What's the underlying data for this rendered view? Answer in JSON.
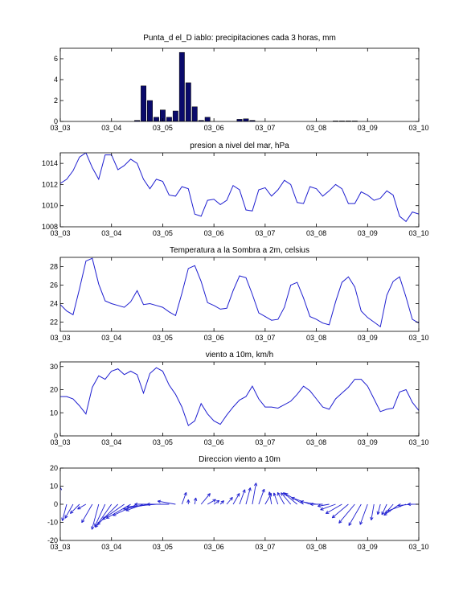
{
  "chart_data": [
    {
      "type": "bar",
      "title": "Punta_d el_D iablo: precipitaciones cada 3 horas, mm",
      "x_ticks": [
        "03_03",
        "03_04",
        "03_05",
        "03_06",
        "03_07",
        "03_08",
        "03_09",
        "03_10"
      ],
      "ylim": [
        0,
        7
      ],
      "y_ticks": [
        0,
        2,
        4,
        6
      ],
      "bar_color": "#0a0a6b",
      "x": [
        4.5,
        4.625,
        4.75,
        4.875,
        5.0,
        5.125,
        5.25,
        5.375,
        5.5,
        5.625,
        5.75,
        5.875,
        6.5,
        6.625,
        6.75,
        8.375,
        8.5,
        8.625,
        8.75
      ],
      "values": [
        0.1,
        3.4,
        2.0,
        0.4,
        1.1,
        0.4,
        1.0,
        6.6,
        3.7,
        1.4,
        0.1,
        0.4,
        0.2,
        0.25,
        0.1,
        0.05,
        0.05,
        0.05,
        0.05
      ]
    },
    {
      "type": "line",
      "title": "presion a nivel del mar, hPa",
      "x_ticks": [
        "03_03",
        "03_04",
        "03_05",
        "03_06",
        "03_07",
        "03_08",
        "03_09",
        "03_10"
      ],
      "ylim": [
        1008,
        1015
      ],
      "y_ticks": [
        1008,
        1010,
        1012,
        1014
      ],
      "line_color": "#1f1fd0",
      "x_start": 3,
      "x_step": 0.125,
      "values": [
        1012.1,
        1012.5,
        1013.3,
        1014.6,
        1015.0,
        1013.6,
        1012.5,
        1014.8,
        1014.8,
        1013.4,
        1013.8,
        1014.4,
        1014.0,
        1012.5,
        1011.6,
        1012.5,
        1012.3,
        1011.0,
        1010.9,
        1011.8,
        1011.6,
        1009.2,
        1009.0,
        1010.5,
        1010.6,
        1010.1,
        1010.5,
        1011.9,
        1011.5,
        1009.6,
        1009.5,
        1011.5,
        1011.7,
        1010.9,
        1011.5,
        1012.4,
        1012.0,
        1010.3,
        1010.2,
        1011.8,
        1011.6,
        1010.9,
        1011.4,
        1012.0,
        1011.6,
        1010.2,
        1010.2,
        1011.3,
        1011.0,
        1010.5,
        1010.7,
        1011.4,
        1011.0,
        1009.0,
        1008.5,
        1009.4,
        1009.2
      ]
    },
    {
      "type": "line",
      "title": "Temperatura a la Sombra a 2m, celsius",
      "x_ticks": [
        "03_03",
        "03_04",
        "03_05",
        "03_06",
        "03_07",
        "03_08",
        "03_09",
        "03_10"
      ],
      "ylim": [
        21,
        29
      ],
      "y_ticks": [
        22,
        24,
        26,
        28
      ],
      "line_color": "#1f1fd0",
      "x_start": 3,
      "x_step": 0.125,
      "values": [
        23.9,
        23.2,
        22.8,
        25.6,
        28.6,
        28.9,
        26.1,
        24.3,
        24.0,
        23.8,
        23.6,
        24.2,
        25.4,
        23.9,
        24.0,
        23.8,
        23.6,
        23.1,
        22.7,
        25.1,
        27.8,
        28.1,
        26.4,
        24.1,
        23.8,
        23.4,
        23.5,
        25.4,
        27.0,
        26.8,
        25.0,
        23.0,
        22.6,
        22.2,
        22.3,
        23.6,
        26.0,
        26.3,
        24.6,
        22.6,
        22.3,
        21.9,
        21.7,
        24.2,
        26.3,
        26.9,
        25.8,
        23.2,
        22.5,
        22.0,
        21.5,
        24.9,
        26.4,
        26.9,
        24.7,
        22.3,
        21.9
      ]
    },
    {
      "type": "line",
      "title": "viento a 10m, km/h",
      "x_ticks": [
        "03_03",
        "03_04",
        "03_05",
        "03_06",
        "03_07",
        "03_08",
        "03_09",
        "03_10"
      ],
      "ylim": [
        0,
        32
      ],
      "y_ticks": [
        0,
        10,
        20,
        30
      ],
      "line_color": "#1f1fd0",
      "x_start": 3,
      "x_step": 0.125,
      "values": [
        17,
        17,
        16,
        13,
        9.5,
        21,
        26,
        24.5,
        28,
        29,
        26.5,
        28,
        26.5,
        18.5,
        27,
        29.5,
        28,
        22,
        18,
        12.5,
        4.5,
        6.5,
        14,
        9.5,
        6.5,
        5,
        9,
        12.5,
        15.5,
        17,
        21.5,
        16,
        12.5,
        12.5,
        12,
        13.5,
        15,
        18,
        21.5,
        19.5,
        16,
        12.5,
        11.5,
        16,
        18.5,
        21,
        24.5,
        24.5,
        21.5,
        16,
        10.5,
        11.5,
        12,
        19,
        20,
        14.5,
        11
      ]
    },
    {
      "type": "quiver",
      "title": "Direccion viento a 10m",
      "x_ticks": [
        "03_03",
        "03_04",
        "03_05",
        "03_06",
        "03_07",
        "03_08",
        "03_09",
        "03_10"
      ],
      "ylim": [
        -20,
        20
      ],
      "y_ticks": [
        -20,
        -10,
        0,
        10,
        20
      ],
      "line_color": "#1f1fd0",
      "x_start": 3,
      "x_step": 0.125,
      "direction_deg": [
        0,
        195,
        210,
        225,
        240,
        210,
        195,
        205,
        215,
        225,
        235,
        240,
        245,
        250,
        260,
        265,
        270,
        270,
        280,
        20,
        0,
        10,
        40,
        60,
        55,
        45,
        40,
        30,
        20,
        15,
        10,
        20,
        30,
        350,
        340,
        330,
        320,
        310,
        300,
        290,
        280,
        270,
        260,
        250,
        240,
        230,
        220,
        210,
        200,
        190,
        195,
        205,
        220,
        235,
        250,
        265,
        270
      ]
    }
  ]
}
